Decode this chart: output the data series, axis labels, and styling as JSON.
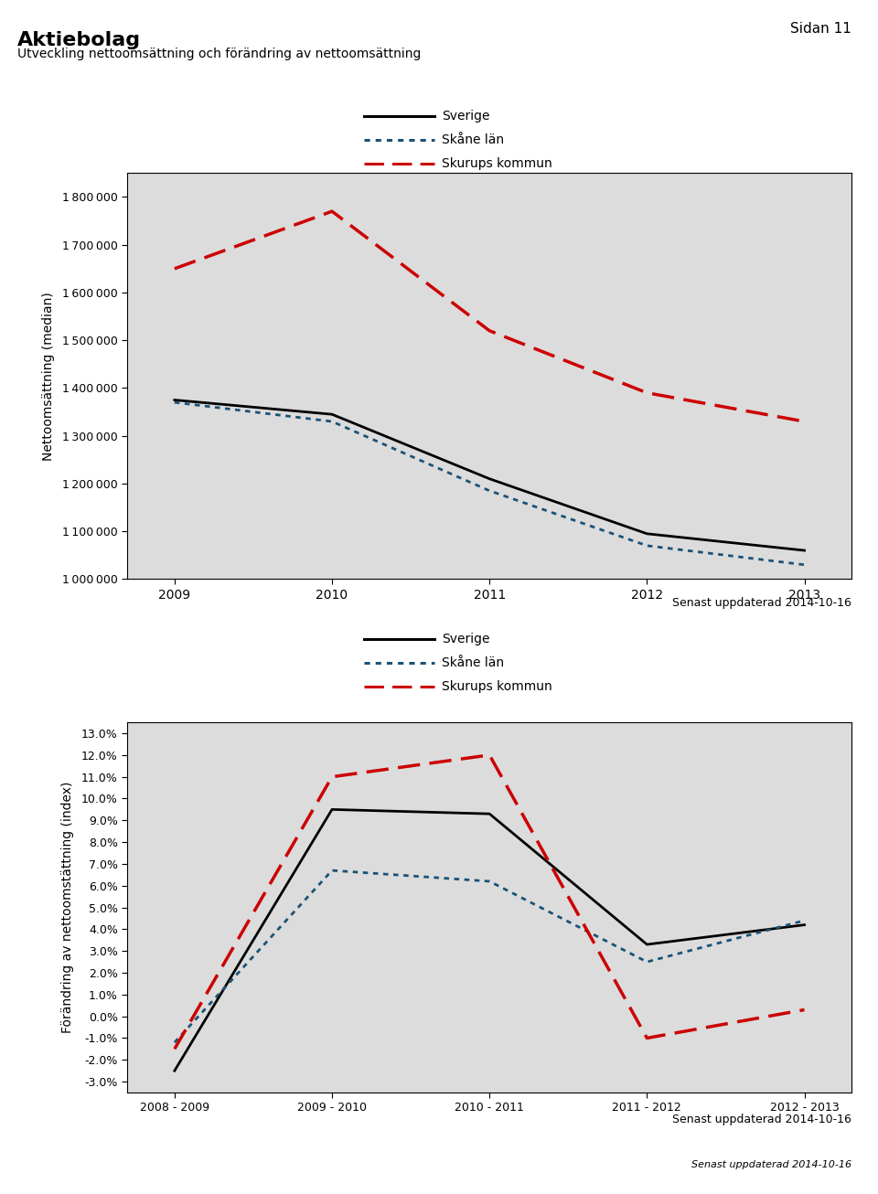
{
  "page_label": "Sidan 11",
  "main_title": "Aktiebolag",
  "subtitle": "Utveckling nettoomsättning och förändring av nettoomsättning",
  "update_text": "Senast uppdaterad 2014-10-16",
  "chart1": {
    "years": [
      2009,
      2010,
      2011,
      2012,
      2013
    ],
    "sverige": [
      1375000,
      1345000,
      1210000,
      1095000,
      1060000
    ],
    "skane": [
      1370000,
      1330000,
      1185000,
      1070000,
      1030000
    ],
    "skurups": [
      1650000,
      1770000,
      1520000,
      1390000,
      1330000
    ],
    "ylabel": "Nettoomsättning (median)",
    "ylim": [
      1000000,
      1850000
    ],
    "yticks": [
      1000000,
      1100000,
      1200000,
      1300000,
      1400000,
      1500000,
      1600000,
      1700000,
      1800000
    ]
  },
  "chart2": {
    "years": [
      "2008 - 2009",
      "2009 - 2010",
      "2010 - 2011",
      "2011 - 2012",
      "2012 - 2013"
    ],
    "sverige": [
      -0.025,
      0.095,
      0.093,
      0.033,
      0.042
    ],
    "skane": [
      -0.012,
      0.067,
      0.062,
      0.025,
      0.044
    ],
    "skurups": [
      -0.015,
      0.11,
      0.12,
      -0.01,
      0.003
    ],
    "ylabel": "Förändring av nettoomstättning (index)",
    "ylim": [
      -0.035,
      0.135
    ],
    "yticks": [
      -0.03,
      -0.02,
      -0.01,
      0.0,
      0.01,
      0.02,
      0.03,
      0.04,
      0.05,
      0.06,
      0.07,
      0.08,
      0.09,
      0.1,
      0.11,
      0.12,
      0.13
    ]
  },
  "legend_labels": [
    "Sverige",
    "Skåne län",
    "Skurups kommun"
  ],
  "color_sverige": "#000000",
  "color_skane": "#1a5276",
  "color_skurups": "#cc0000",
  "fig_bg": "#ffffff",
  "plot_bg": "#dcdcdc"
}
